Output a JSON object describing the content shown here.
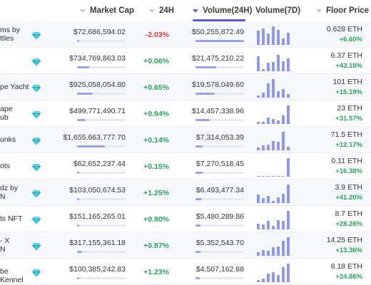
{
  "header": {
    "market_cap": "Market Cap",
    "change_24h": "24H",
    "volume_24h": "Volume(24H)",
    "volume_7d": "Volume(7D)",
    "floor_price": "Floor Price"
  },
  "colors": {
    "accent": "#4f57e6",
    "positive": "#27a35a",
    "negative": "#e53935",
    "gem": "#1fb5c9"
  },
  "rows": [
    {
      "name": "ms by\nttles",
      "market_cap": "$72,686,594.02",
      "mcap_level": 0.03,
      "change": "-2.03%",
      "change_dir": "down",
      "volume": "$50,255,872.49",
      "vol_level": 1.0,
      "spark": [
        0.75,
        0.9,
        0.6,
        1.0,
        0.8,
        0.35,
        0.65
      ],
      "floor": "0.628 ETH",
      "floor_change": "+6.60%"
    },
    {
      "name": "",
      "market_cap": "$734,769,863.03",
      "mcap_level": 0.25,
      "change": "+0.06%",
      "change_dir": "up",
      "volume": "$21,475,210.22",
      "vol_level": 0.43,
      "spark": [
        0.8,
        0.1,
        0.45,
        0.5,
        0.9,
        0.55,
        0.7
      ],
      "floor": "6.37 ETH",
      "floor_change": "+43.18%"
    },
    {
      "name": "pe Yacht",
      "market_cap": "$925,058,054.80",
      "mcap_level": 0.32,
      "change": "+0.65%",
      "change_dir": "up",
      "volume": "$19,578,049.60",
      "vol_level": 0.39,
      "spark": [
        0.1,
        0.25,
        0.75,
        1.0,
        0.35,
        0.45,
        0.2
      ],
      "floor": "101 ETH",
      "floor_change": "+15.19%"
    },
    {
      "name": "ape\nub",
      "market_cap": "$499,771,490.71",
      "mcap_level": 0.17,
      "change": "+0.94%",
      "change_dir": "up",
      "volume": "$14,457,338.96",
      "vol_level": 0.29,
      "spark": [
        0.1,
        0.12,
        0.35,
        0.25,
        0.2,
        0.45,
        1.0
      ],
      "floor": "23 ETH",
      "floor_change": "+31.57%"
    },
    {
      "name": "unks",
      "market_cap": "$1,655,663,777.70",
      "mcap_level": 0.57,
      "change": "+0.14%",
      "change_dir": "up",
      "volume": "$7,314,053.39",
      "vol_level": 0.15,
      "spark": [
        0.15,
        0.25,
        0.3,
        0.5,
        0.45,
        1.0,
        0.2
      ],
      "floor": "71.5 ETH",
      "floor_change": "+12.17%"
    },
    {
      "name": "ots",
      "market_cap": "$62,652,237.44",
      "mcap_level": 0.02,
      "change": "+0.15%",
      "change_dir": "up",
      "volume": "$7,270,518.45",
      "vol_level": 0.14,
      "spark": [
        0.02,
        0.02,
        0.02,
        0.02,
        0.03,
        0.05,
        1.0
      ],
      "floor": "0.11 ETH",
      "floor_change": "+16.38%"
    },
    {
      "name": "dz by\nN",
      "market_cap": "$103,050,674.53",
      "mcap_level": 0.04,
      "change": "+1.25%",
      "change_dir": "up",
      "volume": "$6,493,477.34",
      "vol_level": 0.13,
      "spark": [
        0.45,
        0.25,
        0.4,
        0.1,
        0.3,
        0.5,
        1.0
      ],
      "floor": "3.9 ETH",
      "floor_change": "+41.20%"
    },
    {
      "name": "ts NFT",
      "market_cap": "$151,165,265.01",
      "mcap_level": 0.05,
      "change": "+0.80%",
      "change_dir": "up",
      "volume": "$5,480,289.86",
      "vol_level": 0.11,
      "spark": [
        0.3,
        0.25,
        0.45,
        0.2,
        0.5,
        0.45,
        1.0
      ],
      "floor": "8.7 ETH",
      "floor_change": "+28.26%"
    },
    {
      "name": "- X\nN",
      "market_cap": "$317,155,361.18",
      "mcap_level": 0.11,
      "change": "+0.87%",
      "change_dir": "up",
      "volume": "$5,352,543.70",
      "vol_level": 0.11,
      "spark": [
        0.2,
        0.3,
        0.25,
        0.45,
        0.5,
        0.8,
        1.0
      ],
      "floor": "14.25 ETH",
      "floor_change": "+13.36%"
    },
    {
      "name": "be Kennel",
      "market_cap": "$100,385,242.83",
      "mcap_level": 0.04,
      "change": "+1.23%",
      "change_dir": "up",
      "volume": "$4,507,162.88",
      "vol_level": 0.09,
      "spark": [
        0.1,
        0.2,
        0.45,
        0.55,
        0.4,
        0.8,
        1.0
      ],
      "floor": "8.18 ETH",
      "floor_change": "+24.86%"
    }
  ]
}
